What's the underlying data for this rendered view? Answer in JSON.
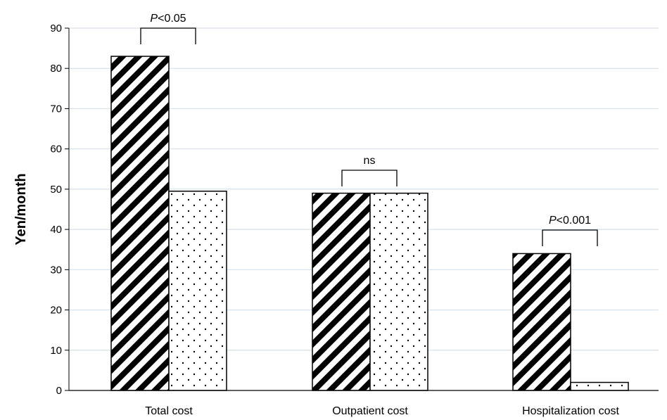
{
  "chart_data": {
    "type": "bar",
    "title": "",
    "xlabel": "",
    "ylabel": "Yen/month",
    "ylim": [
      0,
      90
    ],
    "yticks": [
      0,
      10,
      20,
      30,
      40,
      50,
      60,
      70,
      80,
      90
    ],
    "grid": true,
    "legend": "none",
    "categories": [
      "Total cost",
      "Outpatient cost",
      "Hospitalization cost"
    ],
    "series": [
      {
        "pattern": "diagonal-stripes",
        "values": [
          83,
          49,
          34
        ]
      },
      {
        "pattern": "dots",
        "values": [
          49.5,
          49,
          2
        ]
      }
    ],
    "annotations": [
      {
        "category": "Total cost",
        "italic": "P",
        "text": "<0.05"
      },
      {
        "category": "Outpatient cost",
        "italic": "",
        "text": "ns"
      },
      {
        "category": "Hospitalization cost",
        "italic": "P",
        "text": "<0.001"
      }
    ],
    "colors": {
      "bar_fill": "#ffffff",
      "ink": "#000000",
      "grid": "#d6e0ea"
    }
  }
}
